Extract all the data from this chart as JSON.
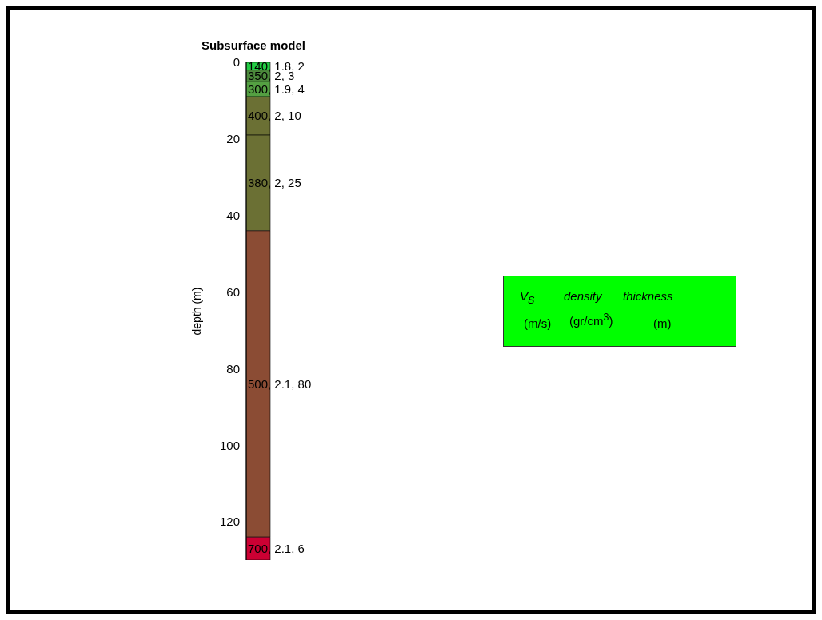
{
  "chart_data": {
    "type": "bar",
    "stacked": true,
    "title": "Subsurface model",
    "ylabel": "depth (m)",
    "categories": [
      null
    ],
    "series": [
      {
        "color": "#22cc44",
        "values": [
          2
        ],
        "value_labels": [
          "140, 1.8, 2"
        ]
      },
      {
        "color": "#4c8a3c",
        "values": [
          3
        ],
        "value_labels": [
          "350, 2, 3"
        ]
      },
      {
        "color": "#54a042",
        "values": [
          4
        ],
        "value_labels": [
          "300, 1.9, 4"
        ]
      },
      {
        "color": "#6b7034",
        "values": [
          10
        ],
        "value_labels": [
          "400, 2, 10"
        ]
      },
      {
        "color": "#6b7034",
        "values": [
          25
        ],
        "value_labels": [
          "380, 2, 25"
        ]
      },
      {
        "color": "#8b4c34",
        "values": [
          80
        ],
        "value_labels": [
          "500, 2.1, 80"
        ]
      },
      {
        "color": "#cc0033",
        "values": [
          6
        ],
        "value_labels": [
          "700, 2.1, 6"
        ]
      }
    ],
    "ylim": [
      130,
      0
    ],
    "yticks": [
      0,
      20,
      40,
      60,
      80,
      100,
      120
    ],
    "grid": false,
    "legend": false,
    "tick_labels": "y",
    "annotations": [
      "V$_{S}$",
      "density",
      "thickness",
      "(m/s)",
      "(gr/cm$^{3}$)",
      "(m)"
    ]
  }
}
